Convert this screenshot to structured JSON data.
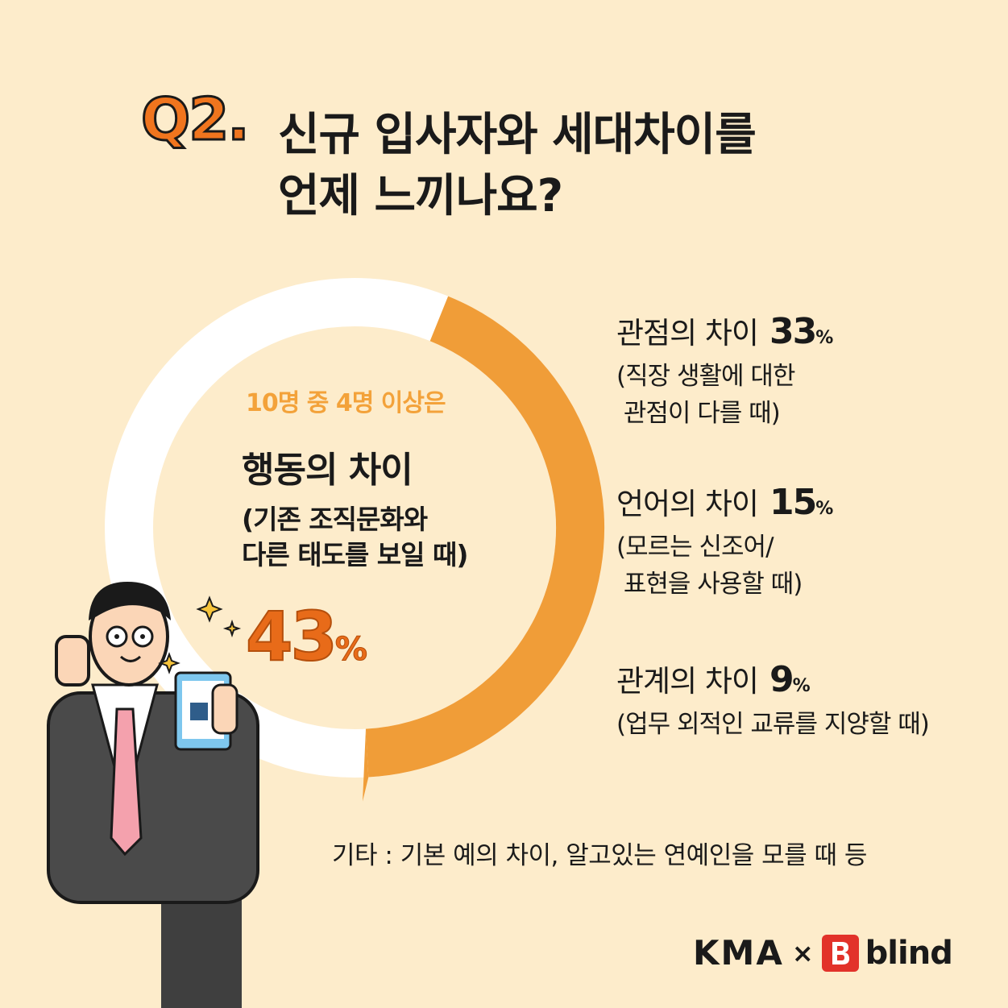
{
  "question": {
    "label": "Q2.",
    "title_line1": "신규 입사자와 세대차이를",
    "title_line2": "언제 느끼나요?"
  },
  "center": {
    "subtitle": "10명 중 4명 이상은",
    "main": "행동의 차이",
    "desc_line1": "(기존 조직문화와",
    "desc_line2": "다른 태도를 보일 때)",
    "percent": "43",
    "percent_unit": "%"
  },
  "items": [
    {
      "label": "관점의 차이",
      "percent": "33",
      "unit": "%",
      "note": "(직장 생활에 대한\n 관점이 다를 때)"
    },
    {
      "label": "언어의 차이",
      "percent": "15",
      "unit": "%",
      "note": "(모르는 신조어/\n 표현을 사용할 때)"
    },
    {
      "label": "관계의 차이",
      "percent": "9",
      "unit": "%",
      "note": "(업무 외적인 교류를 지양할 때)"
    }
  ],
  "etc": "기타 : 기본 예의 차이, 알고있는 연예인을 모를 때 등",
  "branding": {
    "kma": "KMA",
    "times": "×",
    "blind_mark": "B",
    "blind": "blind"
  },
  "colors": {
    "background": "#fdeccb",
    "ring_highlight": "#f09d38",
    "ring_base": "#ffffff",
    "accent": "#e86b19",
    "text": "#1a1a1a",
    "brand_red": "#e2322a"
  },
  "chart_data": {
    "type": "pie",
    "categories": [
      "행동의 차이",
      "관점의 차이",
      "언어의 차이",
      "관계의 차이"
    ],
    "values": [
      43,
      33,
      15,
      9
    ],
    "highlight": "행동의 차이"
  }
}
